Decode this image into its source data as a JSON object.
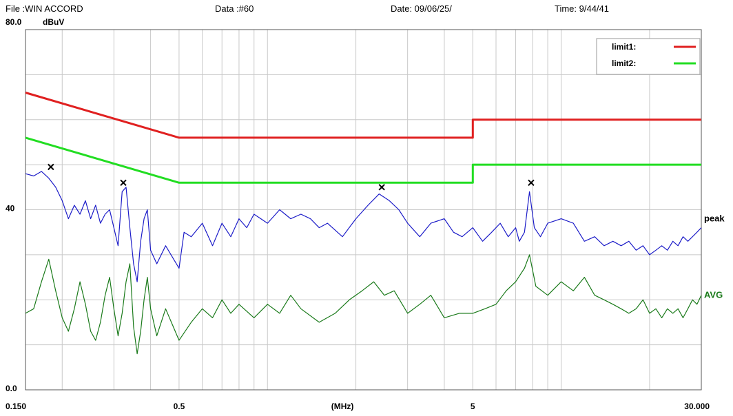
{
  "header": {
    "file": "File :WIN ACCORD",
    "data": "Data :#60",
    "date": "Date: 09/06/25/",
    "time": "Time: 9/44/41"
  },
  "colors": {
    "limit1": "#e02020",
    "limit2": "#22dd22",
    "peak": "#1c1cc8",
    "avg": "#1a7a1a",
    "grid": "#c8c8c8",
    "marker": "#000000"
  },
  "chart_data": {
    "type": "line",
    "x_scale": "log",
    "xlim": [
      0.15,
      30
    ],
    "ylim": [
      0,
      80
    ],
    "ymax_label": "80.0",
    "y_unit": "dBuV",
    "ytick_labels": [
      {
        "value": 40,
        "text": "40"
      },
      {
        "value": 0,
        "text": "0.0"
      }
    ],
    "xtick_labels": [
      {
        "value": 0.15,
        "text": "0.150"
      },
      {
        "value": 0.5,
        "text": "0.5"
      },
      {
        "value": 1.8,
        "text": "(MHz)"
      },
      {
        "value": 5,
        "text": "5"
      },
      {
        "value": 30,
        "text": "30.000"
      }
    ],
    "grid": true,
    "legend": {
      "position": "top-right",
      "entries": [
        {
          "label": "limit1:",
          "color_key": "limit1"
        },
        {
          "label": "limit2:",
          "color_key": "limit2"
        }
      ]
    },
    "series": [
      {
        "name": "limit1:",
        "color_key": "limit1",
        "points": [
          [
            0.15,
            66
          ],
          [
            0.5,
            56
          ],
          [
            5,
            56
          ],
          [
            5,
            60
          ],
          [
            30,
            60
          ]
        ]
      },
      {
        "name": "limit2:",
        "color_key": "limit2",
        "points": [
          [
            0.15,
            56
          ],
          [
            0.5,
            46
          ],
          [
            5,
            46
          ],
          [
            5,
            50
          ],
          [
            30,
            50
          ]
        ]
      },
      {
        "name": "peak",
        "color_key": "peak",
        "label_value": 38,
        "points": [
          [
            0.15,
            48
          ],
          [
            0.16,
            47.5
          ],
          [
            0.17,
            48.5
          ],
          [
            0.18,
            47
          ],
          [
            0.19,
            45
          ],
          [
            0.2,
            42
          ],
          [
            0.21,
            38
          ],
          [
            0.22,
            41
          ],
          [
            0.23,
            39
          ],
          [
            0.24,
            42
          ],
          [
            0.25,
            38
          ],
          [
            0.26,
            41
          ],
          [
            0.27,
            37
          ],
          [
            0.28,
            39
          ],
          [
            0.29,
            40
          ],
          [
            0.3,
            36
          ],
          [
            0.31,
            32
          ],
          [
            0.32,
            44
          ],
          [
            0.33,
            45
          ],
          [
            0.34,
            36
          ],
          [
            0.35,
            28
          ],
          [
            0.36,
            24
          ],
          [
            0.37,
            33
          ],
          [
            0.38,
            38
          ],
          [
            0.39,
            40
          ],
          [
            0.4,
            31
          ],
          [
            0.42,
            28
          ],
          [
            0.45,
            32
          ],
          [
            0.5,
            27
          ],
          [
            0.52,
            35
          ],
          [
            0.55,
            34
          ],
          [
            0.6,
            37
          ],
          [
            0.65,
            32
          ],
          [
            0.7,
            37
          ],
          [
            0.75,
            34
          ],
          [
            0.8,
            38
          ],
          [
            0.85,
            36
          ],
          [
            0.9,
            39
          ],
          [
            1.0,
            37
          ],
          [
            1.1,
            40
          ],
          [
            1.2,
            38
          ],
          [
            1.3,
            39
          ],
          [
            1.4,
            38
          ],
          [
            1.5,
            36
          ],
          [
            1.6,
            37
          ],
          [
            1.8,
            34
          ],
          [
            2.0,
            38
          ],
          [
            2.2,
            41
          ],
          [
            2.4,
            43.5
          ],
          [
            2.6,
            42
          ],
          [
            2.8,
            40
          ],
          [
            3.0,
            37
          ],
          [
            3.3,
            34
          ],
          [
            3.6,
            37
          ],
          [
            4.0,
            38
          ],
          [
            4.3,
            35
          ],
          [
            4.6,
            34
          ],
          [
            5.0,
            36
          ],
          [
            5.4,
            33
          ],
          [
            5.8,
            35
          ],
          [
            6.2,
            37
          ],
          [
            6.6,
            34
          ],
          [
            7.0,
            36
          ],
          [
            7.2,
            33
          ],
          [
            7.5,
            35
          ],
          [
            7.8,
            44
          ],
          [
            8.1,
            36
          ],
          [
            8.5,
            34
          ],
          [
            9.0,
            37
          ],
          [
            10,
            38
          ],
          [
            11,
            37
          ],
          [
            12,
            33
          ],
          [
            13,
            34
          ],
          [
            14,
            32
          ],
          [
            15,
            33
          ],
          [
            16,
            32
          ],
          [
            17,
            33
          ],
          [
            18,
            31
          ],
          [
            19,
            32
          ],
          [
            20,
            30
          ],
          [
            21,
            31
          ],
          [
            22,
            32
          ],
          [
            23,
            31
          ],
          [
            24,
            33
          ],
          [
            25,
            32
          ],
          [
            26,
            34
          ],
          [
            27,
            33
          ],
          [
            28,
            34
          ],
          [
            29,
            35
          ],
          [
            30,
            36
          ]
        ]
      },
      {
        "name": "AVG",
        "color_key": "avg",
        "label_value": 21,
        "points": [
          [
            0.15,
            17
          ],
          [
            0.16,
            18
          ],
          [
            0.17,
            24
          ],
          [
            0.18,
            29
          ],
          [
            0.19,
            22
          ],
          [
            0.2,
            16
          ],
          [
            0.21,
            13
          ],
          [
            0.22,
            18
          ],
          [
            0.23,
            24
          ],
          [
            0.24,
            19
          ],
          [
            0.25,
            13
          ],
          [
            0.26,
            11
          ],
          [
            0.27,
            15
          ],
          [
            0.28,
            21
          ],
          [
            0.29,
            25
          ],
          [
            0.3,
            18
          ],
          [
            0.31,
            12
          ],
          [
            0.32,
            17
          ],
          [
            0.33,
            24
          ],
          [
            0.34,
            28
          ],
          [
            0.35,
            14
          ],
          [
            0.36,
            8
          ],
          [
            0.37,
            13
          ],
          [
            0.38,
            20
          ],
          [
            0.39,
            25
          ],
          [
            0.4,
            18
          ],
          [
            0.42,
            12
          ],
          [
            0.45,
            18
          ],
          [
            0.5,
            11
          ],
          [
            0.55,
            15
          ],
          [
            0.6,
            18
          ],
          [
            0.65,
            16
          ],
          [
            0.7,
            20
          ],
          [
            0.75,
            17
          ],
          [
            0.8,
            19
          ],
          [
            0.9,
            16
          ],
          [
            1.0,
            19
          ],
          [
            1.1,
            17
          ],
          [
            1.2,
            21
          ],
          [
            1.3,
            18
          ],
          [
            1.5,
            15
          ],
          [
            1.7,
            17
          ],
          [
            1.9,
            20
          ],
          [
            2.1,
            22
          ],
          [
            2.3,
            24
          ],
          [
            2.5,
            21
          ],
          [
            2.7,
            22
          ],
          [
            3.0,
            17
          ],
          [
            3.3,
            19
          ],
          [
            3.6,
            21
          ],
          [
            4.0,
            16
          ],
          [
            4.5,
            17
          ],
          [
            5.0,
            17
          ],
          [
            5.5,
            18
          ],
          [
            6.0,
            19
          ],
          [
            6.5,
            22
          ],
          [
            7.0,
            24
          ],
          [
            7.5,
            27
          ],
          [
            7.8,
            30
          ],
          [
            8.2,
            23
          ],
          [
            9.0,
            21
          ],
          [
            10,
            24
          ],
          [
            11,
            22
          ],
          [
            12,
            25
          ],
          [
            13,
            21
          ],
          [
            14,
            20
          ],
          [
            15,
            19
          ],
          [
            16,
            18
          ],
          [
            17,
            17
          ],
          [
            18,
            18
          ],
          [
            19,
            20
          ],
          [
            20,
            17
          ],
          [
            21,
            18
          ],
          [
            22,
            16
          ],
          [
            23,
            18
          ],
          [
            24,
            17
          ],
          [
            25,
            18
          ],
          [
            26,
            16
          ],
          [
            27,
            18
          ],
          [
            28,
            20
          ],
          [
            29,
            19
          ],
          [
            30,
            21
          ]
        ]
      }
    ],
    "markers": [
      [
        0.183,
        49.5
      ],
      [
        0.323,
        46
      ],
      [
        2.45,
        45
      ],
      [
        7.9,
        46
      ]
    ]
  }
}
